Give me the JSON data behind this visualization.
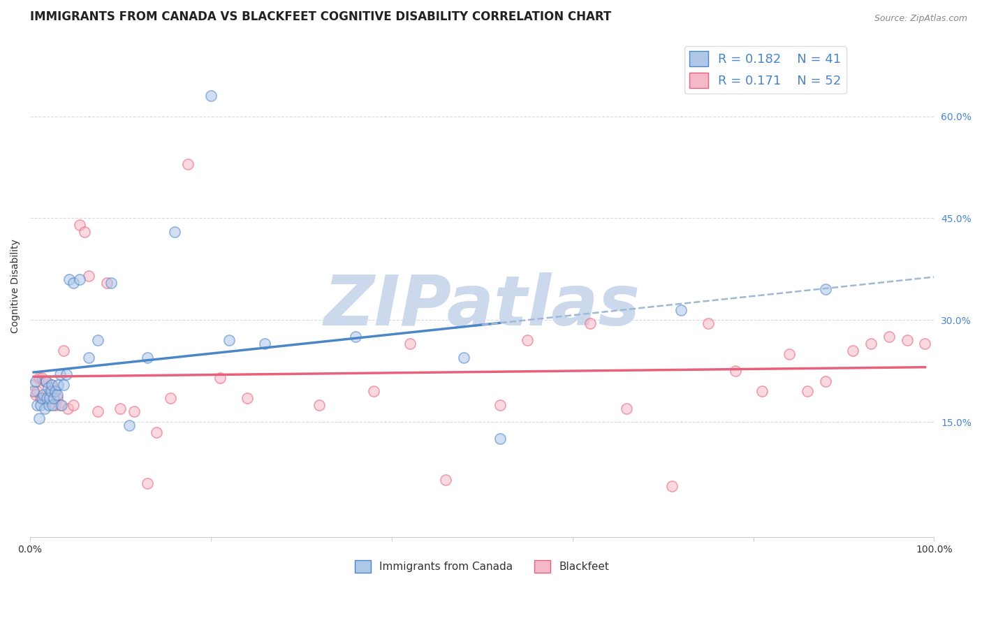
{
  "title": "IMMIGRANTS FROM CANADA VS BLACKFEET COGNITIVE DISABILITY CORRELATION CHART",
  "source": "Source: ZipAtlas.com",
  "xlabel": "",
  "ylabel": "Cognitive Disability",
  "xlim": [
    0,
    1.0
  ],
  "ylim": [
    -0.02,
    0.72
  ],
  "x_ticks": [
    0.0,
    0.2,
    0.4,
    0.6,
    0.8,
    1.0
  ],
  "x_tick_labels": [
    "0.0%",
    "",
    "",
    "",
    "",
    "100.0%"
  ],
  "y_tick_labels_right": [
    "15.0%",
    "30.0%",
    "45.0%",
    "60.0%"
  ],
  "y_tick_vals_right": [
    0.15,
    0.3,
    0.45,
    0.6
  ],
  "canada_color": "#aec6e8",
  "blackfeet_color": "#f5b8c8",
  "canada_line_color": "#4a86c8",
  "blackfeet_line_color": "#e8607a",
  "trend_line_dashed_color": "#a0b8d8",
  "R_canada": 0.182,
  "N_canada": 41,
  "R_blackfeet": 0.171,
  "N_blackfeet": 52,
  "legend_label_canada": "Immigrants from Canada",
  "legend_label_blackfeet": "Blackfeet",
  "canada_x": [
    0.004,
    0.006,
    0.008,
    0.01,
    0.012,
    0.013,
    0.015,
    0.016,
    0.018,
    0.019,
    0.02,
    0.021,
    0.022,
    0.023,
    0.024,
    0.025,
    0.026,
    0.028,
    0.03,
    0.031,
    0.033,
    0.035,
    0.037,
    0.04,
    0.043,
    0.048,
    0.055,
    0.065,
    0.075,
    0.09,
    0.11,
    0.13,
    0.16,
    0.2,
    0.22,
    0.26,
    0.36,
    0.48,
    0.52,
    0.72,
    0.88
  ],
  "canada_y": [
    0.195,
    0.21,
    0.175,
    0.155,
    0.175,
    0.185,
    0.19,
    0.17,
    0.21,
    0.185,
    0.2,
    0.175,
    0.185,
    0.195,
    0.205,
    0.175,
    0.185,
    0.195,
    0.19,
    0.205,
    0.22,
    0.175,
    0.205,
    0.22,
    0.36,
    0.355,
    0.36,
    0.245,
    0.27,
    0.355,
    0.145,
    0.245,
    0.43,
    0.63,
    0.27,
    0.265,
    0.275,
    0.245,
    0.125,
    0.315,
    0.345
  ],
  "blackfeet_x": [
    0.004,
    0.006,
    0.008,
    0.01,
    0.012,
    0.013,
    0.015,
    0.016,
    0.018,
    0.02,
    0.022,
    0.024,
    0.026,
    0.028,
    0.03,
    0.033,
    0.037,
    0.042,
    0.048,
    0.055,
    0.06,
    0.065,
    0.075,
    0.085,
    0.1,
    0.115,
    0.13,
    0.14,
    0.155,
    0.175,
    0.21,
    0.24,
    0.32,
    0.38,
    0.42,
    0.46,
    0.52,
    0.55,
    0.62,
    0.66,
    0.71,
    0.75,
    0.78,
    0.81,
    0.84,
    0.86,
    0.88,
    0.91,
    0.93,
    0.95,
    0.97,
    0.99
  ],
  "blackfeet_y": [
    0.205,
    0.19,
    0.195,
    0.215,
    0.185,
    0.215,
    0.185,
    0.21,
    0.21,
    0.185,
    0.195,
    0.205,
    0.195,
    0.175,
    0.185,
    0.175,
    0.255,
    0.17,
    0.175,
    0.44,
    0.43,
    0.365,
    0.165,
    0.355,
    0.17,
    0.165,
    0.06,
    0.135,
    0.185,
    0.53,
    0.215,
    0.185,
    0.175,
    0.195,
    0.265,
    0.065,
    0.175,
    0.27,
    0.295,
    0.17,
    0.055,
    0.295,
    0.225,
    0.195,
    0.25,
    0.195,
    0.21,
    0.255,
    0.265,
    0.275,
    0.27,
    0.265
  ],
  "watermark_text": "ZIPatlas",
  "watermark_color": "#ccd8ec",
  "background_color": "#ffffff",
  "grid_color": "#d8d8e8",
  "title_fontsize": 12,
  "axis_label_fontsize": 10,
  "tick_fontsize": 10,
  "legend_fontsize": 13,
  "marker_size": 120,
  "marker_alpha": 0.55,
  "marker_linewidth": 1.2
}
